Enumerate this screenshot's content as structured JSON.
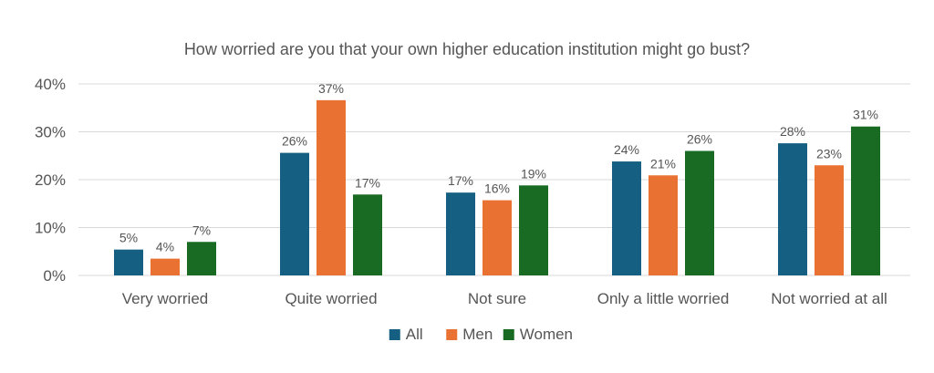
{
  "chart_data": {
    "type": "bar",
    "title": "How worried are you that your own higher education institution might go bust?",
    "categories": [
      "Very worried",
      "Quite worried",
      "Not sure",
      "Only a little worried",
      "Not worried at all"
    ],
    "series": [
      {
        "name": "All",
        "color": "#156082",
        "values": [
          5,
          26,
          17,
          24,
          28
        ],
        "plot_values": [
          5.4,
          25.6,
          17.3,
          23.8,
          27.6
        ]
      },
      {
        "name": "Men",
        "color": "#E97132",
        "values": [
          4,
          37,
          16,
          21,
          23
        ],
        "plot_values": [
          3.5,
          36.6,
          15.7,
          20.9,
          23.0
        ]
      },
      {
        "name": "Women",
        "color": "#196B24",
        "values": [
          7,
          17,
          19,
          26,
          31
        ],
        "plot_values": [
          7.0,
          16.9,
          18.8,
          26.0,
          31.1
        ]
      }
    ],
    "ylim": [
      0,
      40
    ],
    "yticks": [
      0,
      10,
      20,
      30,
      40
    ],
    "value_suffix": "%",
    "grid": true,
    "legend": "bottom"
  }
}
